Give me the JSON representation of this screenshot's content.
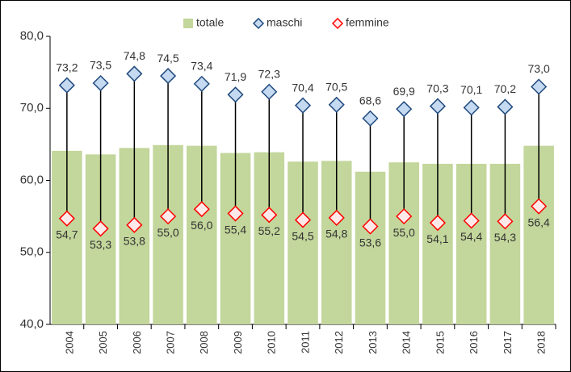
{
  "chart_data": {
    "type": "bar_range",
    "categories": [
      "2004",
      "2005",
      "2006",
      "2007",
      "2008",
      "2009",
      "2010",
      "2011",
      "2012",
      "2013",
      "2014",
      "2015",
      "2016",
      "2017",
      "2018"
    ],
    "series": [
      {
        "name": "totale",
        "color": "#c3d69b",
        "values": [
          64.1,
          63.6,
          64.5,
          64.9,
          64.8,
          63.8,
          63.9,
          62.6,
          62.7,
          61.2,
          62.5,
          62.3,
          62.3,
          62.3,
          64.8
        ]
      },
      {
        "name": "maschi",
        "color": "#1f497d",
        "values": [
          73.2,
          73.5,
          74.8,
          74.5,
          73.4,
          71.9,
          72.3,
          70.4,
          70.5,
          68.6,
          69.9,
          70.3,
          70.1,
          70.2,
          73.0
        ],
        "value_labels": [
          "73,2",
          "73,5",
          "74,8",
          "74,5",
          "73,4",
          "71,9",
          "72,3",
          "70,4",
          "70,5",
          "68,6",
          "69,9",
          "70,3",
          "70,1",
          "70,2",
          "73,0"
        ]
      },
      {
        "name": "femmine",
        "color": "#ff0000",
        "values": [
          54.7,
          53.3,
          53.8,
          55.0,
          56.0,
          55.4,
          55.2,
          54.5,
          54.8,
          53.6,
          55.0,
          54.1,
          54.4,
          54.3,
          56.4
        ],
        "value_labels": [
          "54,7",
          "53,3",
          "53,8",
          "55,0",
          "56,0",
          "55,4",
          "55,2",
          "54,5",
          "54,8",
          "53,6",
          "55,0",
          "54,1",
          "54,4",
          "54,3",
          "56,4"
        ]
      }
    ],
    "ylim": [
      40,
      80
    ],
    "yticks": [
      {
        "value": 40,
        "label": "40,0"
      },
      {
        "value": 50,
        "label": "50,0"
      },
      {
        "value": 60,
        "label": "60,0"
      },
      {
        "value": 70,
        "label": "70,0"
      },
      {
        "value": 80,
        "label": "80,0"
      }
    ],
    "legend": "top"
  }
}
